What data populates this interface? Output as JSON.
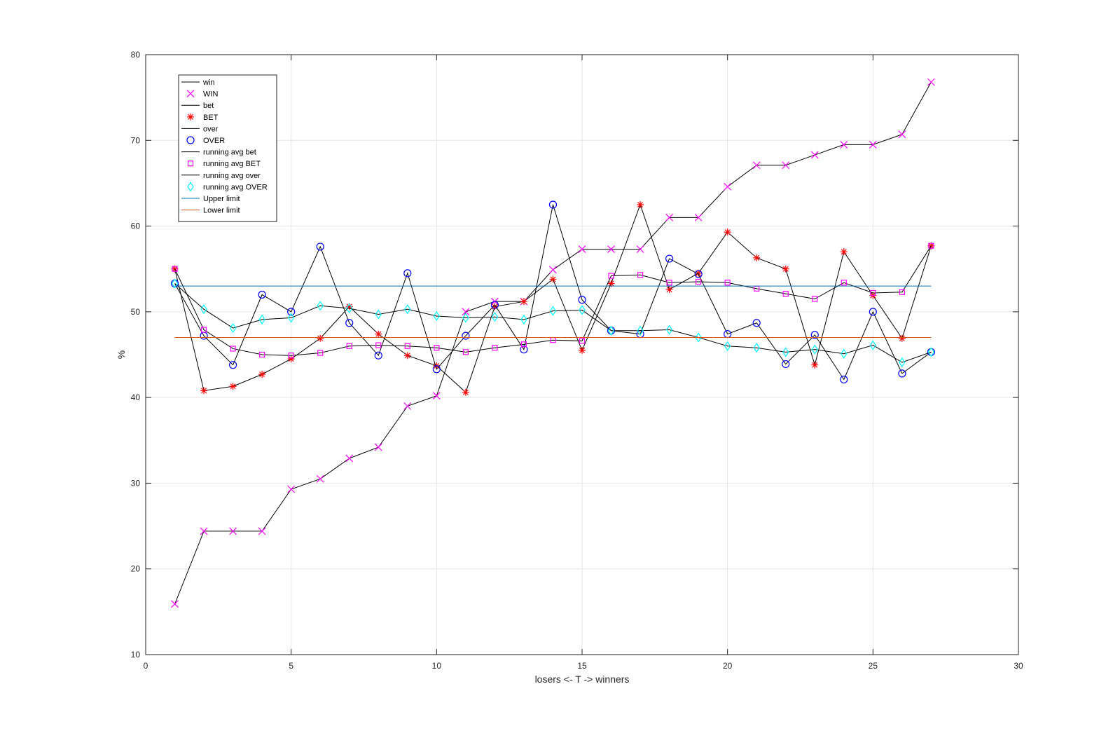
{
  "chart_data": {
    "type": "line",
    "title": "",
    "xlabel": "losers <- T -> winners",
    "ylabel": "%",
    "xlim": [
      0,
      30
    ],
    "ylim": [
      10,
      80
    ],
    "xticks": [
      0,
      5,
      10,
      15,
      20,
      25,
      30
    ],
    "yticks": [
      10,
      20,
      30,
      40,
      50,
      60,
      70,
      80
    ],
    "grid": true,
    "legend_position": "top-left",
    "x": [
      1,
      2,
      3,
      4,
      5,
      6,
      7,
      8,
      9,
      10,
      11,
      12,
      13,
      14,
      15,
      16,
      17,
      18,
      19,
      20,
      21,
      22,
      23,
      24,
      25,
      26,
      27
    ],
    "series": [
      {
        "name": "win",
        "style": "line",
        "color": "#000000",
        "values": [
          15.9,
          24.4,
          24.4,
          24.4,
          29.3,
          30.5,
          32.9,
          34.2,
          39.0,
          40.2,
          50.0,
          51.2,
          51.2,
          54.9,
          57.3,
          57.3,
          57.3,
          61.0,
          61.0,
          64.6,
          67.1,
          67.1,
          68.3,
          69.5,
          69.5,
          70.7,
          76.8
        ]
      },
      {
        "name": "WIN",
        "style": "x",
        "color": "#ff00ff",
        "values": [
          15.9,
          24.4,
          24.4,
          24.4,
          29.3,
          30.5,
          32.9,
          34.2,
          39.0,
          40.2,
          50.0,
          51.2,
          51.2,
          54.9,
          57.3,
          57.3,
          57.3,
          61.0,
          61.0,
          64.6,
          67.1,
          67.1,
          68.3,
          69.5,
          69.5,
          70.7,
          76.8
        ]
      },
      {
        "name": "bet",
        "style": "line",
        "color": "#000000",
        "values": [
          55.0,
          40.8,
          41.3,
          42.7,
          44.5,
          46.9,
          50.6,
          47.4,
          44.9,
          43.7,
          40.6,
          50.6,
          51.2,
          53.8,
          45.5,
          53.3,
          62.5,
          52.6,
          54.5,
          59.3,
          56.3,
          55.0,
          43.8,
          57.0,
          51.9,
          46.9,
          57.7
        ]
      },
      {
        "name": "BET",
        "style": "asterisk",
        "color": "#ff0000",
        "values": [
          55.0,
          40.8,
          41.3,
          42.7,
          44.5,
          46.9,
          50.6,
          47.4,
          44.9,
          43.7,
          40.6,
          50.6,
          51.2,
          53.8,
          45.5,
          53.3,
          62.5,
          52.6,
          54.5,
          59.3,
          56.3,
          55.0,
          43.8,
          57.0,
          51.9,
          46.9,
          57.7
        ]
      },
      {
        "name": "over",
        "style": "line",
        "color": "#000000",
        "values": [
          53.3,
          47.2,
          43.8,
          52.0,
          50.0,
          57.6,
          48.7,
          44.9,
          54.5,
          43.3,
          47.2,
          50.8,
          45.6,
          62.5,
          51.4,
          47.8,
          47.4,
          56.2,
          54.4,
          47.4,
          48.7,
          43.9,
          47.3,
          42.1,
          50.0,
          42.8,
          45.3
        ]
      },
      {
        "name": "OVER",
        "style": "circle",
        "color": "#0000ff",
        "values": [
          53.3,
          47.2,
          43.8,
          52.0,
          50.0,
          57.6,
          48.7,
          44.9,
          54.5,
          43.3,
          47.2,
          50.8,
          45.6,
          62.5,
          51.4,
          47.8,
          47.4,
          56.2,
          54.4,
          47.4,
          48.7,
          43.9,
          47.3,
          42.1,
          50.0,
          42.8,
          45.3
        ]
      },
      {
        "name": "running avg bet",
        "style": "line",
        "color": "#000000",
        "values": [
          55.0,
          47.9,
          45.7,
          45.0,
          44.9,
          45.2,
          46.0,
          46.1,
          46.0,
          45.8,
          45.3,
          45.8,
          46.2,
          46.7,
          46.6,
          54.2,
          54.3,
          53.4,
          53.5,
          53.4,
          52.7,
          52.1,
          51.5,
          53.4,
          52.2,
          52.3,
          57.7
        ]
      },
      {
        "name": "running avg BET",
        "style": "square",
        "color": "#ff00ff",
        "values": [
          55.0,
          47.9,
          45.7,
          45.0,
          44.9,
          45.2,
          46.0,
          46.1,
          46.0,
          45.8,
          45.3,
          45.8,
          46.2,
          46.7,
          46.6,
          54.2,
          54.3,
          53.4,
          53.5,
          53.4,
          52.7,
          52.1,
          51.5,
          53.4,
          52.2,
          52.3,
          57.7
        ]
      },
      {
        "name": "running avg over",
        "style": "line",
        "color": "#000000",
        "values": [
          53.3,
          50.3,
          48.1,
          49.1,
          49.3,
          50.7,
          50.4,
          49.7,
          50.3,
          49.5,
          49.3,
          49.4,
          49.1,
          50.1,
          50.2,
          47.8,
          47.8,
          47.9,
          47.0,
          46.0,
          45.8,
          45.3,
          45.6,
          45.1,
          46.1,
          44.1,
          45.3
        ]
      },
      {
        "name": "running avg OVER",
        "style": "diamond",
        "color": "#00ffff",
        "values": [
          53.3,
          50.3,
          48.1,
          49.1,
          49.3,
          50.7,
          50.4,
          49.7,
          50.3,
          49.5,
          49.3,
          49.4,
          49.1,
          50.1,
          50.2,
          47.8,
          47.8,
          47.9,
          47.0,
          46.0,
          45.8,
          45.3,
          45.6,
          45.1,
          46.1,
          44.1,
          45.3
        ]
      },
      {
        "name": "Upper limit",
        "style": "line",
        "color": "#0072bd",
        "values": [
          53,
          53,
          53,
          53,
          53,
          53,
          53,
          53,
          53,
          53,
          53,
          53,
          53,
          53,
          53,
          53,
          53,
          53,
          53,
          53,
          53,
          53,
          53,
          53,
          53,
          53,
          53
        ]
      },
      {
        "name": "Lower limit",
        "style": "line",
        "color": "#d95319",
        "values": [
          47,
          47,
          47,
          47,
          47,
          47,
          47,
          47,
          47,
          47,
          47,
          47,
          47,
          47,
          47,
          47,
          47,
          47,
          47,
          47,
          47,
          47,
          47,
          47,
          47,
          47,
          47
        ]
      }
    ]
  }
}
